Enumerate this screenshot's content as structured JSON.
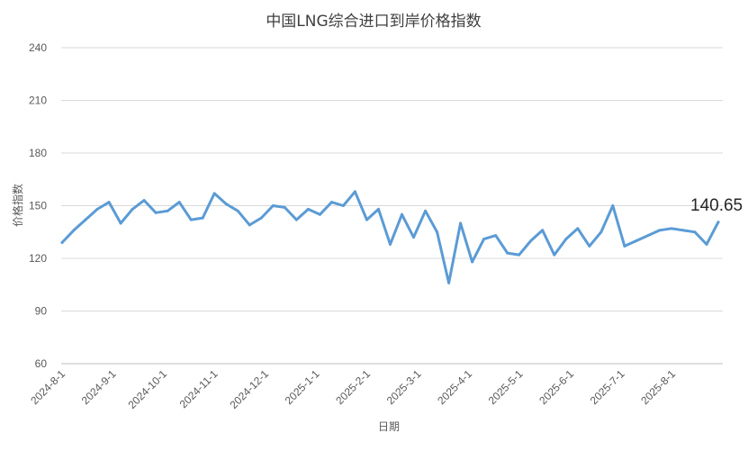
{
  "chart_data": {
    "type": "line",
    "title": "中国LNG综合进口到岸价格指数",
    "xlabel": "日期",
    "ylabel": "价格指数",
    "ylim": [
      60,
      240
    ],
    "yticks": [
      "60",
      "90",
      "120",
      "150",
      "180",
      "210",
      "240"
    ],
    "xtick_labels": [
      "2024-8-1",
      "2024-9-1",
      "2024-10-1",
      "2024-11-1",
      "2024-12-1",
      "2025-1-1",
      "2025-2-1",
      "2025-3-1",
      "2025-4-1",
      "2025-5-1",
      "2025-6-1",
      "2025-7-1",
      "2025-8-1"
    ],
    "grid": true,
    "legend": "none",
    "line_color": "#5b9bd5",
    "last_value_label": "140.65",
    "series": [
      {
        "values": [
          129,
          136,
          142,
          148,
          152,
          140,
          148,
          153,
          146,
          147,
          152,
          142,
          143,
          157,
          151,
          147,
          139,
          143,
          150,
          149,
          142,
          148,
          145,
          152,
          150,
          158,
          142,
          148,
          128,
          145,
          132,
          147,
          135,
          106,
          140,
          118,
          131,
          133,
          123,
          122,
          130,
          136,
          122,
          131,
          137,
          127,
          135,
          150,
          127,
          130,
          133,
          136,
          137,
          136,
          135,
          128,
          140.65
        ]
      }
    ]
  }
}
